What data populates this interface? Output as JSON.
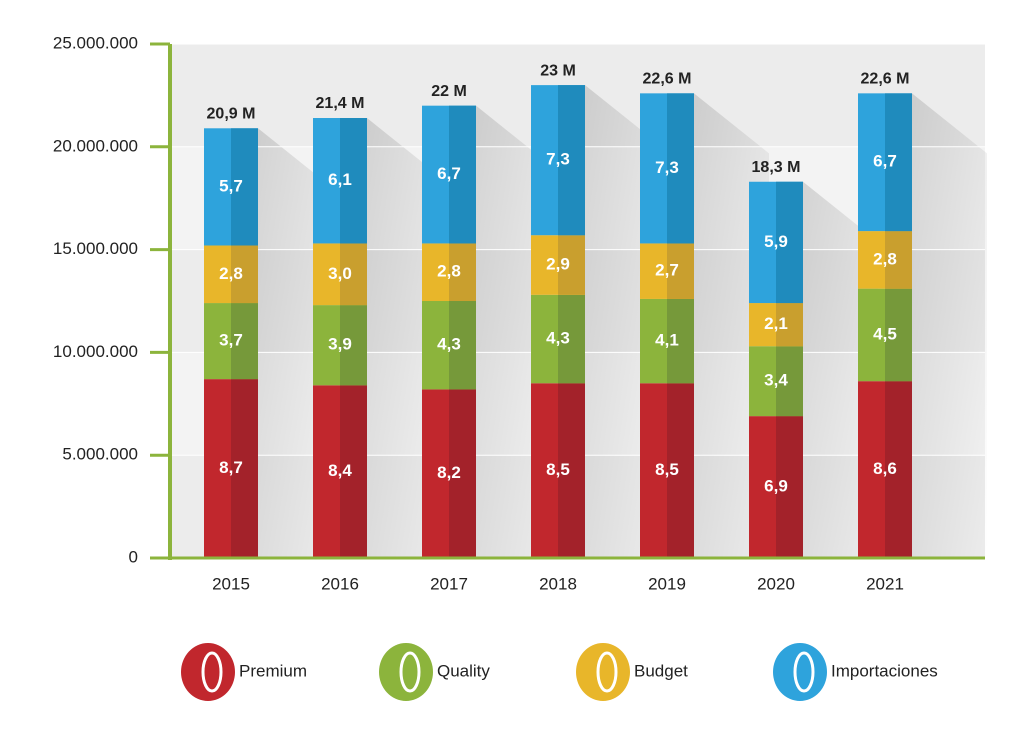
{
  "chart_data": {
    "type": "stacked_bar",
    "categories": [
      "2015",
      "2016",
      "2017",
      "2018",
      "2019",
      "2020",
      "2021"
    ],
    "series": [
      {
        "name": "Premium",
        "color": "#c1272d",
        "values": [
          8700000,
          8400000,
          8200000,
          8500000,
          8500000,
          6900000,
          8600000
        ],
        "value_labels": [
          "8,7",
          "8,4",
          "8,2",
          "8,5",
          "8,5",
          "6,9",
          "8,6"
        ]
      },
      {
        "name": "Quality",
        "color": "#8cb43c",
        "values": [
          3700000,
          3900000,
          4300000,
          4300000,
          4100000,
          3400000,
          4500000
        ],
        "value_labels": [
          "3,7",
          "3,9",
          "4,3",
          "4,3",
          "4,1",
          "3,4",
          "4,5"
        ]
      },
      {
        "name": "Budget",
        "color": "#e8b62a",
        "values": [
          2800000,
          3000000,
          2800000,
          2900000,
          2700000,
          2100000,
          2800000
        ],
        "value_labels": [
          "2,8",
          "3,0",
          "2,8",
          "2,9",
          "2,7",
          "2,1",
          "2,8"
        ]
      },
      {
        "name": "Importaciones",
        "color": "#2ea3dc",
        "values": [
          5700000,
          6100000,
          6700000,
          7300000,
          7300000,
          5900000,
          6700000
        ],
        "value_labels": [
          "5,7",
          "6,1",
          "6,7",
          "7,3",
          "7,3",
          "5,9",
          "6,7"
        ]
      }
    ],
    "total_labels": [
      "20,9 M",
      "21,4 M",
      "22 M",
      "23 M",
      "22,6 M",
      "18,3 M",
      "22,6 M"
    ],
    "ylim": [
      0,
      25000000
    ],
    "yticks": [
      0,
      {
        "value": 5000000,
        "label": "5.000.000"
      },
      {
        "value": 10000000,
        "label": "10.000.000"
      },
      {
        "value": 15000000,
        "label": "15.000.000"
      },
      {
        "value": 20000000,
        "label": "20.000.000"
      },
      {
        "value": 25000000,
        "label": "25.000.000"
      }
    ],
    "grid": true,
    "legend": "bottom"
  }
}
